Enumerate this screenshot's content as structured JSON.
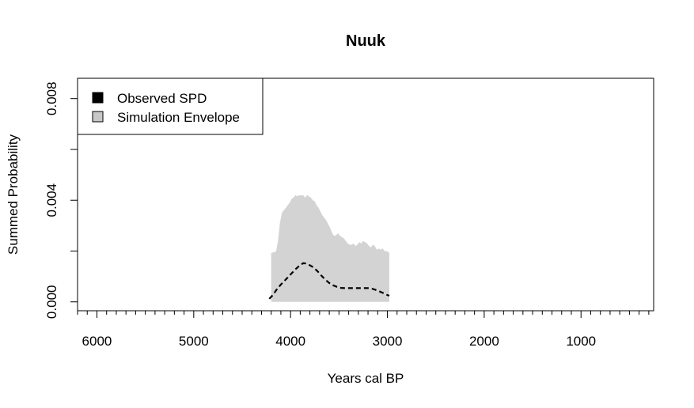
{
  "chart_data": {
    "type": "area",
    "title": "Nuuk",
    "xlabel": "Years cal BP",
    "ylabel": "Summed Probability",
    "x_reversed": true,
    "xlim": [
      6200,
      250
    ],
    "ylim": [
      -0.00035,
      0.0088
    ],
    "x_ticks": [
      6000,
      5000,
      4000,
      3000,
      2000,
      1000
    ],
    "x_tick_labels": [
      "6000",
      "5000",
      "4000",
      "3000",
      "2000",
      "1000"
    ],
    "x_minor_tick_step": 100,
    "y_ticks": [
      0.0,
      0.002,
      0.004,
      0.006,
      0.008
    ],
    "y_tick_labels": [
      "0.000",
      "",
      "0.004",
      "",
      "0.008"
    ],
    "legend": {
      "position": "top-left",
      "entries": [
        {
          "label": "Observed SPD",
          "color": "#000000"
        },
        {
          "label": "Simulation Envelope",
          "color": "#c8c8c8"
        }
      ]
    },
    "series": [
      {
        "name": "Simulation Envelope",
        "kind": "envelope",
        "color": "#d3d3d3",
        "x": [
          4200,
          4180,
          4150,
          4130,
          4110,
          4090,
          4070,
          4050,
          4030,
          4010,
          3990,
          3970,
          3950,
          3930,
          3910,
          3890,
          3870,
          3850,
          3830,
          3810,
          3790,
          3770,
          3750,
          3730,
          3710,
          3690,
          3670,
          3650,
          3630,
          3610,
          3590,
          3570,
          3550,
          3530,
          3510,
          3490,
          3470,
          3450,
          3430,
          3410,
          3390,
          3370,
          3350,
          3330,
          3310,
          3290,
          3270,
          3250,
          3230,
          3210,
          3190,
          3170,
          3150,
          3130,
          3110,
          3090,
          3070,
          3050,
          3030,
          3010,
          2990,
          2980
        ],
        "upper": [
          0.00192,
          0.00195,
          0.00198,
          0.0024,
          0.0031,
          0.0035,
          0.0036,
          0.0037,
          0.0038,
          0.0039,
          0.00405,
          0.0041,
          0.0042,
          0.00415,
          0.0042,
          0.00418,
          0.0042,
          0.0041,
          0.0042,
          0.00415,
          0.0041,
          0.004,
          0.00395,
          0.0038,
          0.0037,
          0.00355,
          0.0034,
          0.0033,
          0.0032,
          0.00305,
          0.0029,
          0.0027,
          0.0026,
          0.00262,
          0.0027,
          0.0026,
          0.00255,
          0.0025,
          0.0024,
          0.0023,
          0.00225,
          0.00225,
          0.0023,
          0.0022,
          0.00225,
          0.00235,
          0.0023,
          0.0024,
          0.00235,
          0.0023,
          0.0022,
          0.00215,
          0.00225,
          0.0022,
          0.00205,
          0.0021,
          0.00205,
          0.0021,
          0.002,
          0.002,
          0.00195,
          0.00193
        ],
        "lower": [
          0.0,
          0.0,
          0.0,
          0.0,
          0.0,
          0.0,
          0.0,
          0.0,
          0.0,
          0.0,
          0.0,
          0.0,
          0.0,
          0.0,
          0.0,
          0.0,
          0.0,
          0.0,
          0.0,
          0.0,
          0.0,
          0.0,
          0.0,
          0.0,
          0.0,
          0.0,
          0.0,
          0.0,
          0.0,
          0.0,
          0.0,
          0.0,
          0.0,
          0.0,
          0.0,
          0.0,
          0.0,
          0.0,
          0.0,
          0.0,
          0.0,
          0.0,
          0.0,
          0.0,
          0.0,
          0.0,
          0.0,
          0.0,
          0.0,
          0.0,
          0.0,
          0.0,
          0.0,
          0.0,
          0.0,
          0.0,
          0.0,
          0.0,
          0.0,
          0.0,
          0.0,
          0.0
        ]
      },
      {
        "name": "Observed SPD",
        "kind": "line",
        "color": "#000000",
        "dash": "dashed",
        "x": [
          4220,
          4180,
          4150,
          4100,
          4050,
          4000,
          3950,
          3900,
          3870,
          3840,
          3800,
          3760,
          3720,
          3680,
          3640,
          3600,
          3560,
          3520,
          3480,
          3440,
          3400,
          3350,
          3300,
          3250,
          3200,
          3150,
          3100,
          3050,
          3000,
          2980
        ],
        "y": [
          0.00012,
          0.00028,
          0.00045,
          0.00068,
          0.00088,
          0.00108,
          0.00128,
          0.00145,
          0.00152,
          0.00151,
          0.00144,
          0.00135,
          0.0012,
          0.00103,
          0.00087,
          0.00074,
          0.00065,
          0.00059,
          0.00055,
          0.00054,
          0.00054,
          0.00054,
          0.00054,
          0.00054,
          0.00054,
          0.00051,
          0.00044,
          0.00036,
          0.00027,
          0.00024
        ]
      }
    ]
  }
}
